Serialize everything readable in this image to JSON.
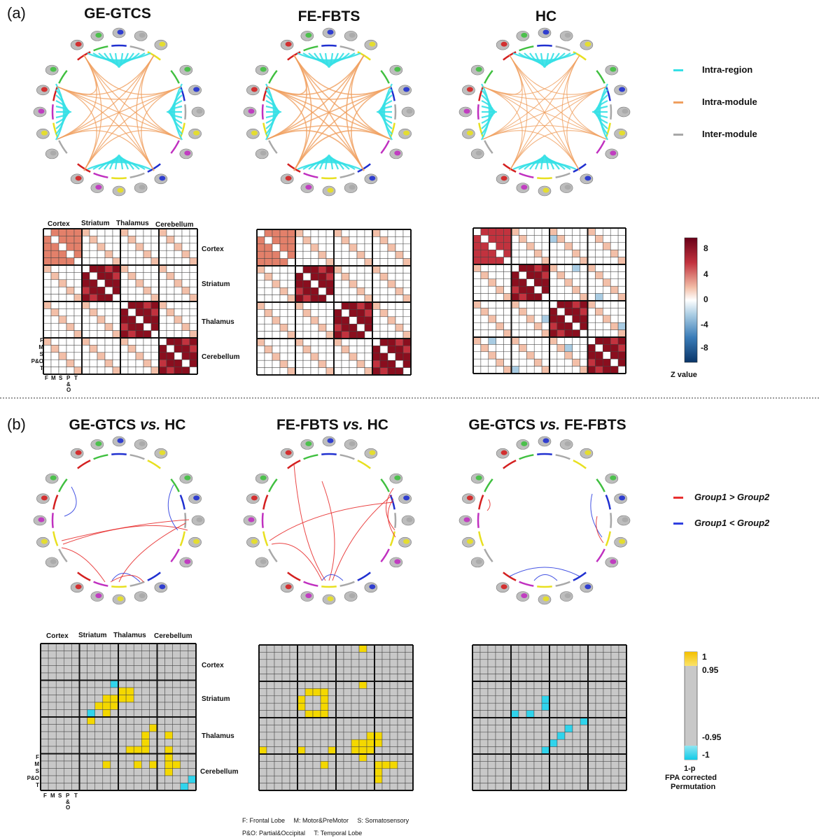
{
  "panel_a": {
    "label": "(a)",
    "titles": [
      "GE-GTCS",
      "FE-FBTS",
      "HC"
    ],
    "legend": [
      {
        "label": "Intra-region",
        "color": "#35e0e6"
      },
      {
        "label": "Intra-module",
        "color": "#f0a060"
      },
      {
        "label": "Inter-module",
        "color": "#a8a8a8"
      }
    ],
    "colorbar": {
      "ticks": [
        "8",
        "4",
        "0",
        "-4",
        "-8"
      ],
      "label": "Z value"
    }
  },
  "panel_b": {
    "label": "(b)",
    "titles": [
      {
        "group": "GE-GTCS",
        "vs": "vs.",
        "ref": "HC"
      },
      {
        "group": "FE-FBTS",
        "vs": "vs.",
        "ref": "HC"
      },
      {
        "group": "GE-GTCS",
        "vs": "vs.",
        "ref": "FE-FBTS"
      }
    ],
    "legend": [
      {
        "label": "Group1 > Group2",
        "color": "#e83030"
      },
      {
        "label": "Group1 < Group2",
        "color": "#3040e0"
      }
    ],
    "colorbar": {
      "ticks": [
        "1",
        "0.95",
        "-0.95",
        "-1"
      ],
      "label_lines": [
        "1-p",
        "FPA corrected",
        "Permutation"
      ]
    }
  },
  "matrix_labels": {
    "modules_top": [
      "Cortex",
      "Striatum",
      "Thalamus",
      "Cerebellum"
    ],
    "modules_right": [
      "Cortex",
      "Striatum",
      "Thalamus",
      "Cerebellum"
    ],
    "sub_left": [
      "F",
      "M",
      "S",
      "P&O",
      "T"
    ],
    "sub_bottom": [
      "F",
      "M",
      "S",
      "P",
      "T"
    ],
    "sub_bottom_extra": [
      "&",
      "O"
    ]
  },
  "footnote": {
    "line1": "F: Frontal Lobe     M: Motor&PreMotor     S: Somatosensory",
    "line2": "P&O: Partial&Occipital     T: Temporal Lobe"
  },
  "colors": {
    "region_colors": [
      "#d42020",
      "#40c040",
      "#2030d0",
      "#a8a8a8",
      "#e8e020",
      "#c030c0"
    ],
    "matrix_gray": "#c8c8c8",
    "sig_yellow": "#f4d800",
    "sig_cyan": "#30d4ec"
  }
}
